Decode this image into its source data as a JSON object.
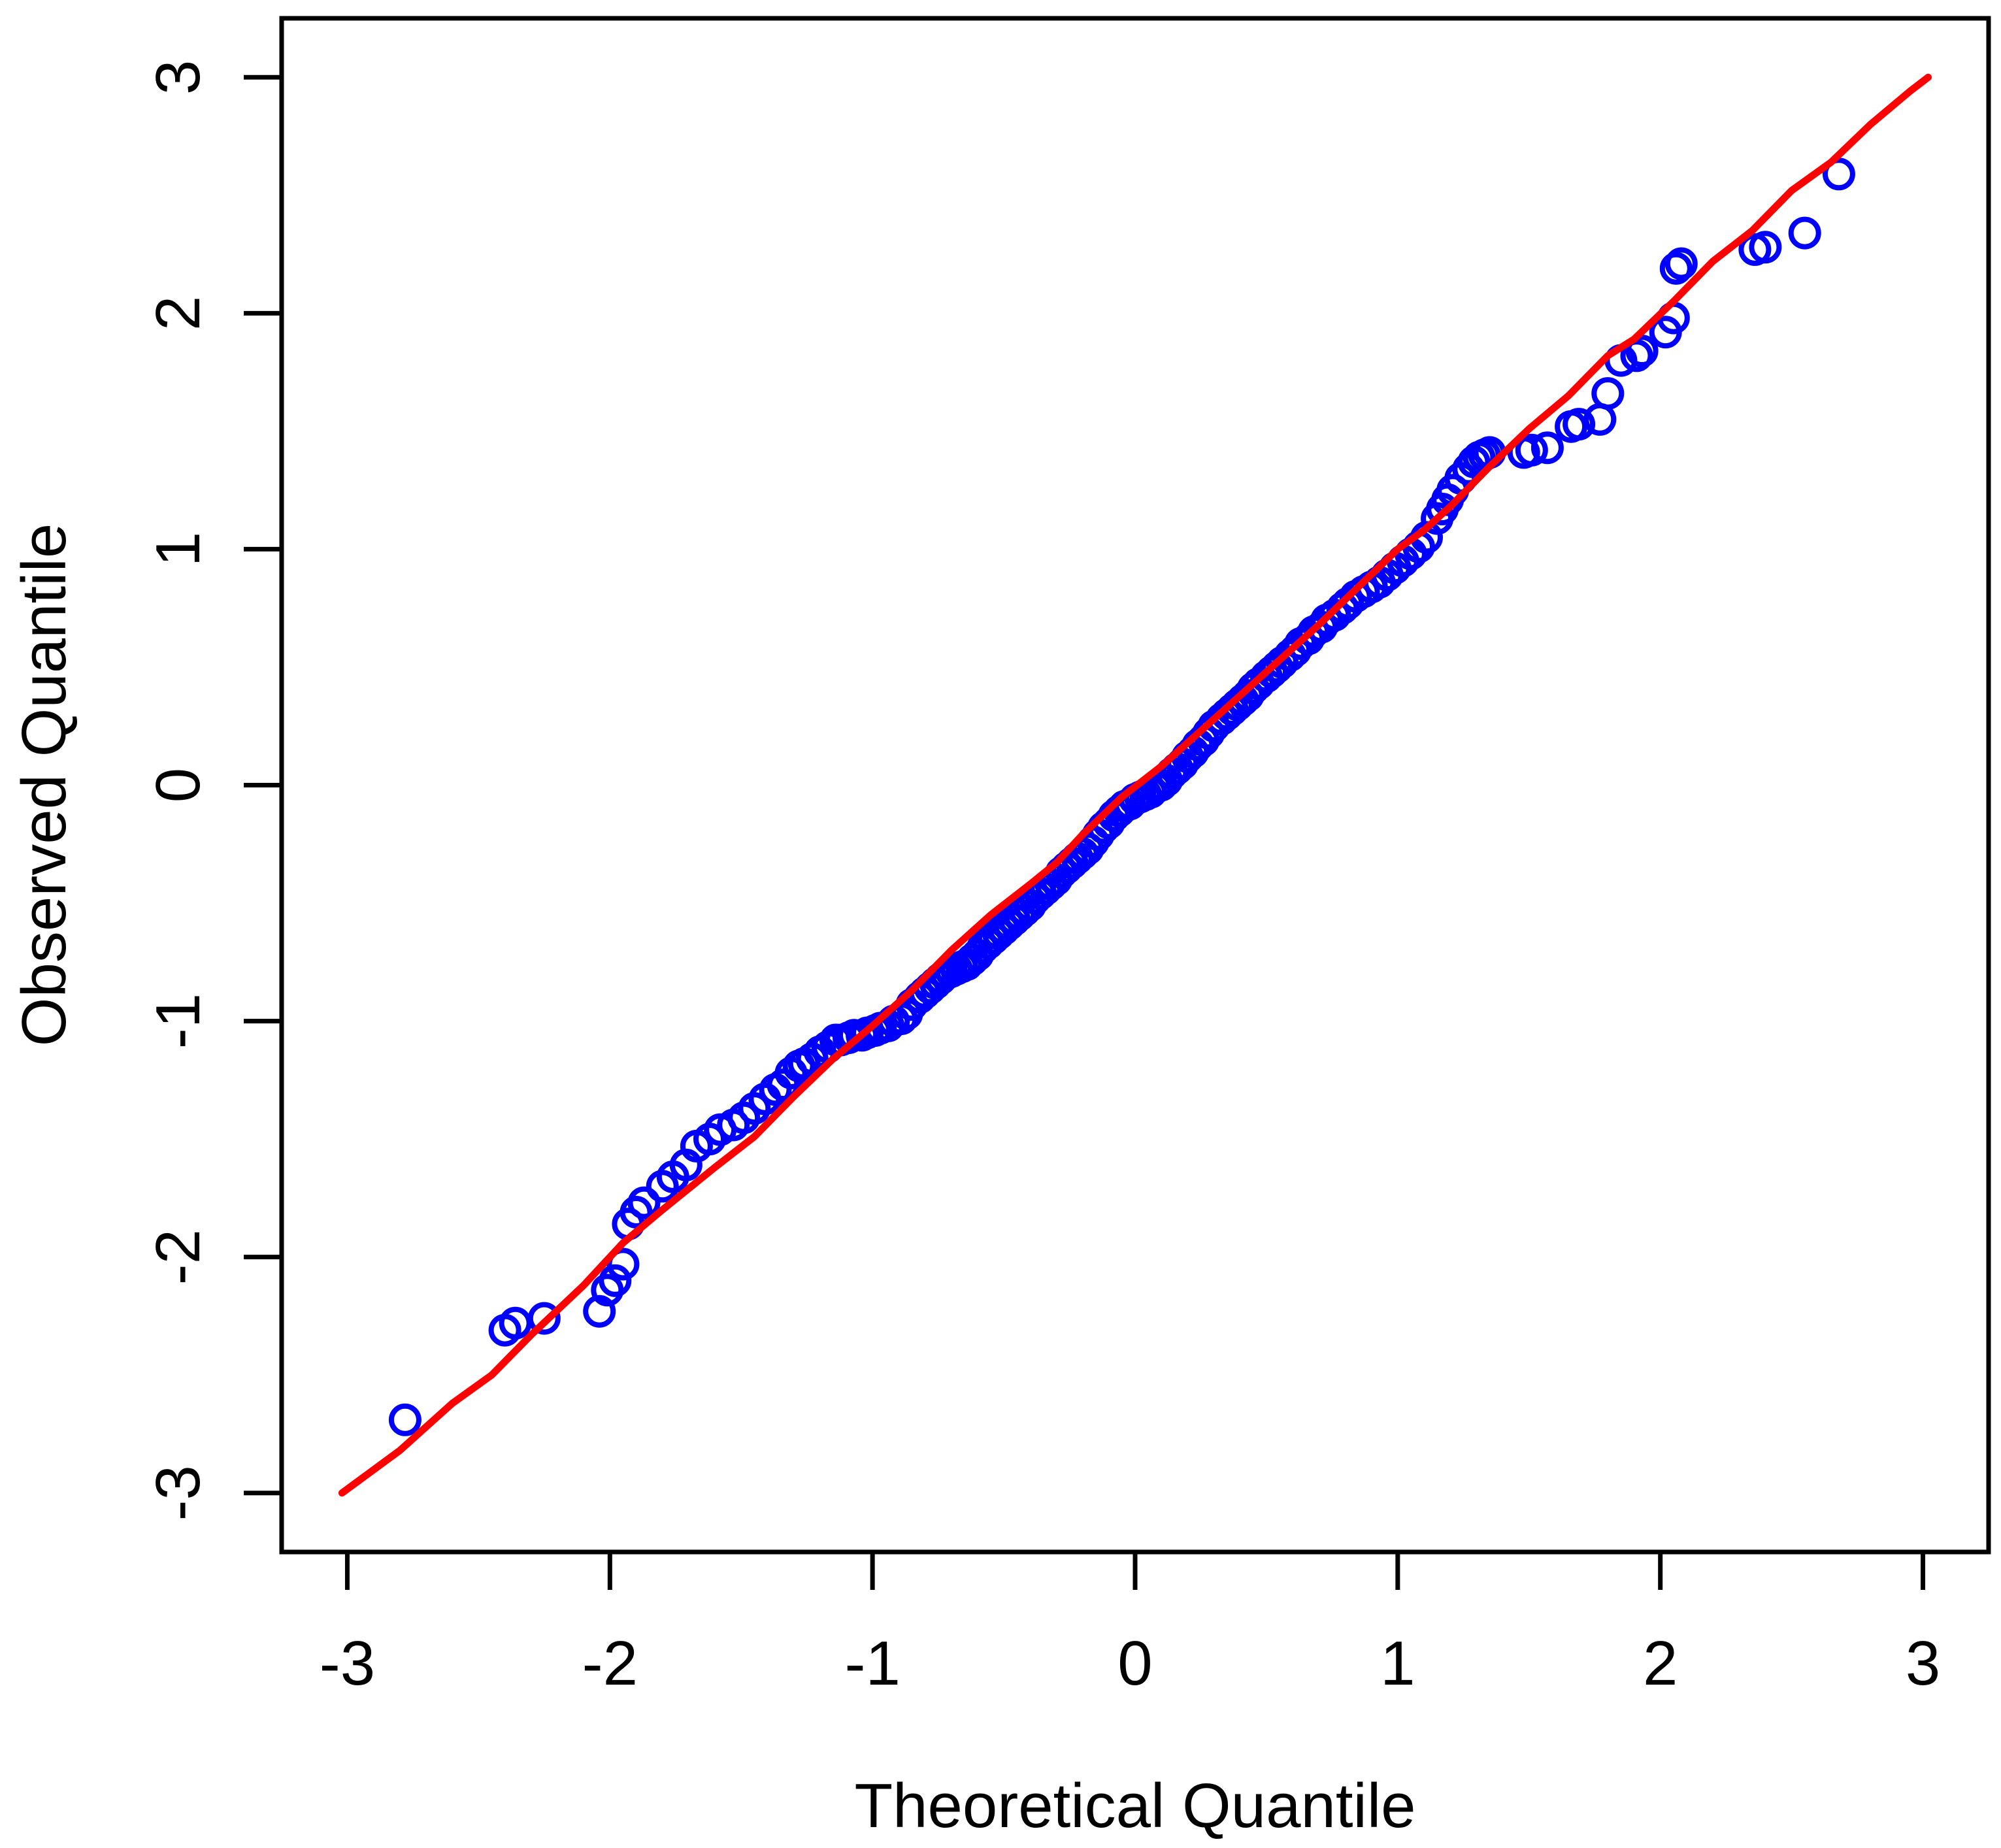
{
  "chart_data": {
    "type": "scatter",
    "title": "",
    "xlabel": "Theoretical Quantile",
    "ylabel": "Observed Quantile",
    "xlim": [
      -3.25,
      3.25
    ],
    "ylim": [
      -3.25,
      3.25
    ],
    "x_ticks": [
      -3,
      -2,
      -1,
      0,
      1,
      2,
      3
    ],
    "y_ticks": [
      -3,
      -2,
      -1,
      0,
      1,
      2,
      3
    ],
    "grid": false,
    "legend": "none",
    "colors": {
      "points": "#0000FF",
      "reference_line": "#FF0000",
      "axes": "#000000",
      "background": "#FFFFFF"
    },
    "marker": "open-circle",
    "series": [
      {
        "name": "sample-quantiles",
        "points": [
          [
            -2.78,
            -2.69
          ],
          [
            -2.4,
            -2.31
          ],
          [
            -2.36,
            -2.28
          ],
          [
            -2.25,
            -2.26
          ],
          [
            -2.04,
            -2.23
          ],
          [
            -2.01,
            -2.14
          ],
          [
            -1.98,
            -2.1
          ],
          [
            -1.95,
            -2.03
          ],
          [
            -1.93,
            -1.86
          ],
          [
            -1.9,
            -1.81
          ],
          [
            -1.87,
            -1.77
          ],
          [
            -1.8,
            -1.7
          ],
          [
            -1.76,
            -1.66
          ],
          [
            -1.71,
            -1.61
          ],
          [
            -1.67,
            -1.53
          ],
          [
            -1.62,
            -1.5
          ],
          [
            -1.58,
            -1.46
          ],
          [
            -1.53,
            -1.44
          ],
          [
            -1.49,
            -1.41
          ],
          [
            -1.45,
            -1.37
          ],
          [
            -1.41,
            -1.33
          ],
          [
            -1.37,
            -1.29
          ],
          [
            -1.34,
            -1.27
          ],
          [
            -1.31,
            -1.22
          ],
          [
            -1.28,
            -1.19
          ],
          [
            -1.26,
            -1.18
          ],
          [
            -1.23,
            -1.16
          ],
          [
            -1.2,
            -1.13
          ],
          [
            -1.17,
            -1.11
          ],
          [
            -1.14,
            -1.08
          ],
          [
            -1.12,
            -1.08
          ],
          [
            -1.09,
            -1.07
          ],
          [
            -1.07,
            -1.06
          ],
          [
            -1.04,
            -1.06
          ],
          [
            -1.02,
            -1.05
          ],
          [
            -0.99,
            -1.04
          ],
          [
            -0.97,
            -1.03
          ],
          [
            -0.94,
            -1.02
          ],
          [
            -0.92,
            -1.0
          ],
          [
            -0.89,
            -0.99
          ],
          [
            -0.87,
            -0.97
          ],
          [
            -0.85,
            -0.93
          ],
          [
            -0.82,
            -0.9
          ],
          [
            -0.8,
            -0.88
          ],
          [
            -0.78,
            -0.86
          ],
          [
            -0.76,
            -0.84
          ],
          [
            -0.74,
            -0.82
          ],
          [
            -0.72,
            -0.8
          ],
          [
            -0.7,
            -0.79
          ],
          [
            -0.68,
            -0.78
          ],
          [
            -0.66,
            -0.77
          ],
          [
            -0.64,
            -0.76
          ],
          [
            -0.62,
            -0.74
          ],
          [
            -0.6,
            -0.72
          ],
          [
            -0.58,
            -0.69
          ],
          [
            -0.56,
            -0.67
          ],
          [
            -0.54,
            -0.65
          ],
          [
            -0.52,
            -0.63
          ],
          [
            -0.5,
            -0.61
          ],
          [
            -0.48,
            -0.59
          ],
          [
            -0.46,
            -0.57
          ],
          [
            -0.44,
            -0.55
          ],
          [
            -0.42,
            -0.53
          ],
          [
            -0.4,
            -0.51
          ],
          [
            -0.38,
            -0.48
          ],
          [
            -0.36,
            -0.46
          ],
          [
            -0.34,
            -0.44
          ],
          [
            -0.32,
            -0.42
          ],
          [
            -0.3,
            -0.4
          ],
          [
            -0.28,
            -0.37
          ],
          [
            -0.26,
            -0.35
          ],
          [
            -0.24,
            -0.33
          ],
          [
            -0.22,
            -0.31
          ],
          [
            -0.2,
            -0.29
          ],
          [
            -0.18,
            -0.27
          ],
          [
            -0.16,
            -0.24
          ],
          [
            -0.14,
            -0.21
          ],
          [
            -0.12,
            -0.18
          ],
          [
            -0.1,
            -0.16
          ],
          [
            -0.08,
            -0.13
          ],
          [
            -0.06,
            -0.11
          ],
          [
            -0.04,
            -0.09
          ],
          [
            -0.02,
            -0.08
          ],
          [
            0.0,
            -0.06
          ],
          [
            0.02,
            -0.05
          ],
          [
            0.04,
            -0.04
          ],
          [
            0.06,
            -0.03
          ],
          [
            0.08,
            -0.01
          ],
          [
            0.1,
            0.0
          ],
          [
            0.12,
            0.02
          ],
          [
            0.14,
            0.05
          ],
          [
            0.16,
            0.07
          ],
          [
            0.18,
            0.09
          ],
          [
            0.2,
            0.12
          ],
          [
            0.22,
            0.14
          ],
          [
            0.24,
            0.17
          ],
          [
            0.26,
            0.19
          ],
          [
            0.28,
            0.22
          ],
          [
            0.3,
            0.25
          ],
          [
            0.33,
            0.28
          ],
          [
            0.35,
            0.3
          ],
          [
            0.37,
            0.32
          ],
          [
            0.39,
            0.34
          ],
          [
            0.41,
            0.36
          ],
          [
            0.43,
            0.38
          ],
          [
            0.45,
            0.41
          ],
          [
            0.47,
            0.43
          ],
          [
            0.5,
            0.46
          ],
          [
            0.52,
            0.48
          ],
          [
            0.54,
            0.5
          ],
          [
            0.56,
            0.52
          ],
          [
            0.59,
            0.55
          ],
          [
            0.61,
            0.57
          ],
          [
            0.63,
            0.6
          ],
          [
            0.66,
            0.62
          ],
          [
            0.68,
            0.65
          ],
          [
            0.71,
            0.67
          ],
          [
            0.73,
            0.7
          ],
          [
            0.76,
            0.72
          ],
          [
            0.79,
            0.75
          ],
          [
            0.81,
            0.77
          ],
          [
            0.84,
            0.8
          ],
          [
            0.87,
            0.82
          ],
          [
            0.9,
            0.84
          ],
          [
            0.93,
            0.86
          ],
          [
            0.96,
            0.89
          ],
          [
            0.99,
            0.92
          ],
          [
            1.02,
            0.95
          ],
          [
            1.05,
            0.98
          ],
          [
            1.08,
            1.01
          ],
          [
            1.11,
            1.05
          ],
          [
            1.15,
            1.13
          ],
          [
            1.17,
            1.17
          ],
          [
            1.19,
            1.21
          ],
          [
            1.21,
            1.25
          ],
          [
            1.24,
            1.3
          ],
          [
            1.27,
            1.34
          ],
          [
            1.29,
            1.37
          ],
          [
            1.31,
            1.39
          ],
          [
            1.33,
            1.4
          ],
          [
            1.35,
            1.41
          ],
          [
            1.48,
            1.41
          ],
          [
            1.51,
            1.42
          ],
          [
            1.57,
            1.43
          ],
          [
            1.66,
            1.52
          ],
          [
            1.69,
            1.53
          ],
          [
            1.77,
            1.55
          ],
          [
            1.8,
            1.66
          ],
          [
            1.85,
            1.8
          ],
          [
            1.91,
            1.82
          ],
          [
            1.93,
            1.84
          ],
          [
            2.02,
            1.92
          ],
          [
            2.05,
            1.98
          ],
          [
            2.06,
            2.19
          ],
          [
            2.08,
            2.21
          ],
          [
            2.36,
            2.27
          ],
          [
            2.4,
            2.28
          ],
          [
            2.55,
            2.34
          ],
          [
            2.68,
            2.59
          ]
        ]
      }
    ],
    "reference_line": {
      "name": "qq-fit-line",
      "points": [
        [
          -3.02,
          -3.0
        ],
        [
          -2.8,
          -2.82
        ],
        [
          -2.6,
          -2.62
        ],
        [
          -2.45,
          -2.5
        ],
        [
          -2.3,
          -2.33
        ],
        [
          -2.1,
          -2.12
        ],
        [
          -1.95,
          -1.94
        ],
        [
          -1.8,
          -1.8
        ],
        [
          -1.6,
          -1.62
        ],
        [
          -1.45,
          -1.49
        ],
        [
          -1.3,
          -1.32
        ],
        [
          -1.15,
          -1.16
        ],
        [
          -1.0,
          -1.02
        ],
        [
          -0.85,
          -0.87
        ],
        [
          -0.7,
          -0.7
        ],
        [
          -0.55,
          -0.55
        ],
        [
          -0.4,
          -0.42
        ],
        [
          -0.3,
          -0.33
        ],
        [
          -0.2,
          -0.21
        ],
        [
          -0.05,
          -0.05
        ],
        [
          0.1,
          0.08
        ],
        [
          0.25,
          0.23
        ],
        [
          0.4,
          0.38
        ],
        [
          0.55,
          0.53
        ],
        [
          0.7,
          0.68
        ],
        [
          0.85,
          0.84
        ],
        [
          1.0,
          1.0
        ],
        [
          1.1,
          1.08
        ],
        [
          1.2,
          1.18
        ],
        [
          1.35,
          1.35
        ],
        [
          1.5,
          1.51
        ],
        [
          1.65,
          1.65
        ],
        [
          1.8,
          1.82
        ],
        [
          1.9,
          1.89
        ],
        [
          2.05,
          2.05
        ],
        [
          2.2,
          2.22
        ],
        [
          2.35,
          2.35
        ],
        [
          2.5,
          2.52
        ],
        [
          2.65,
          2.64
        ],
        [
          2.8,
          2.8
        ],
        [
          2.95,
          2.94
        ],
        [
          3.02,
          3.0
        ]
      ]
    }
  }
}
